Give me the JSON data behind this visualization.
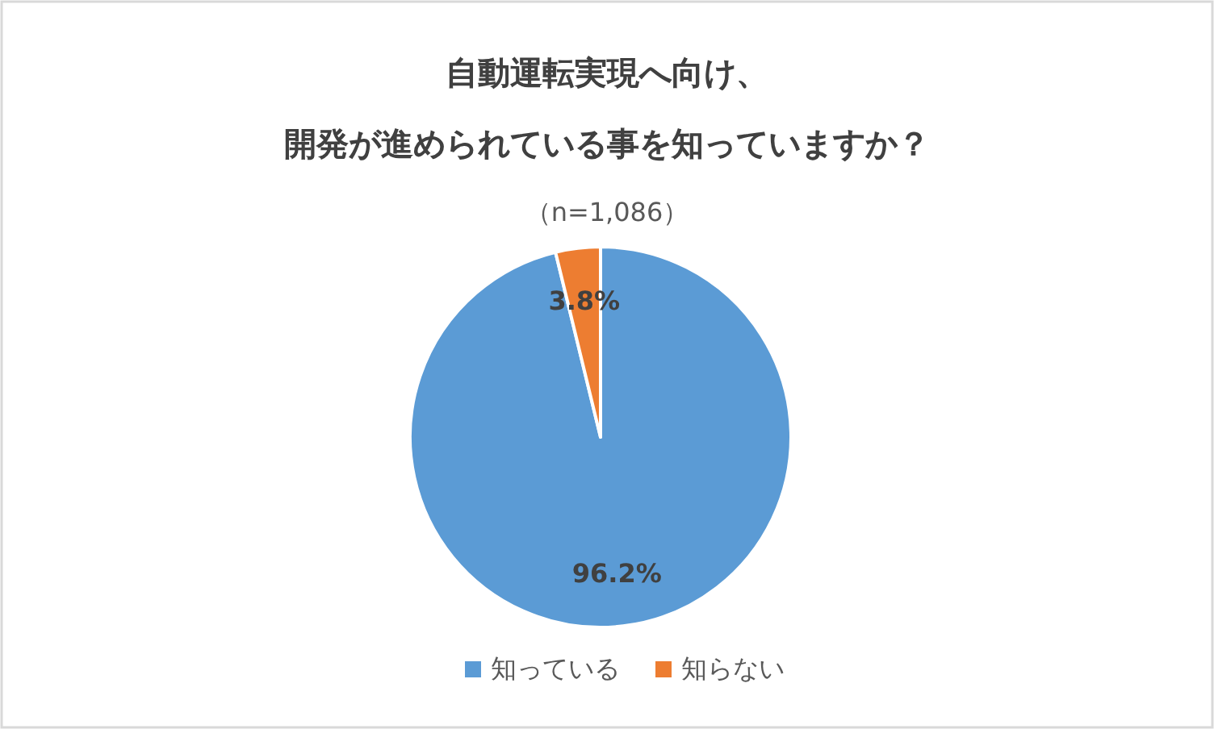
{
  "chart_data": {
    "type": "pie",
    "title": "自動運転実現へ向け、開発が進められている事を知っていますか？",
    "subtitle": "（n=1,086）",
    "categories": [
      "知っている",
      "知らない"
    ],
    "values": [
      96.2,
      3.8
    ],
    "colors": [
      "#5b9bd5",
      "#ed7d31"
    ],
    "value_labels": [
      "96.2%",
      "3.8%"
    ],
    "legend": "bottom"
  }
}
